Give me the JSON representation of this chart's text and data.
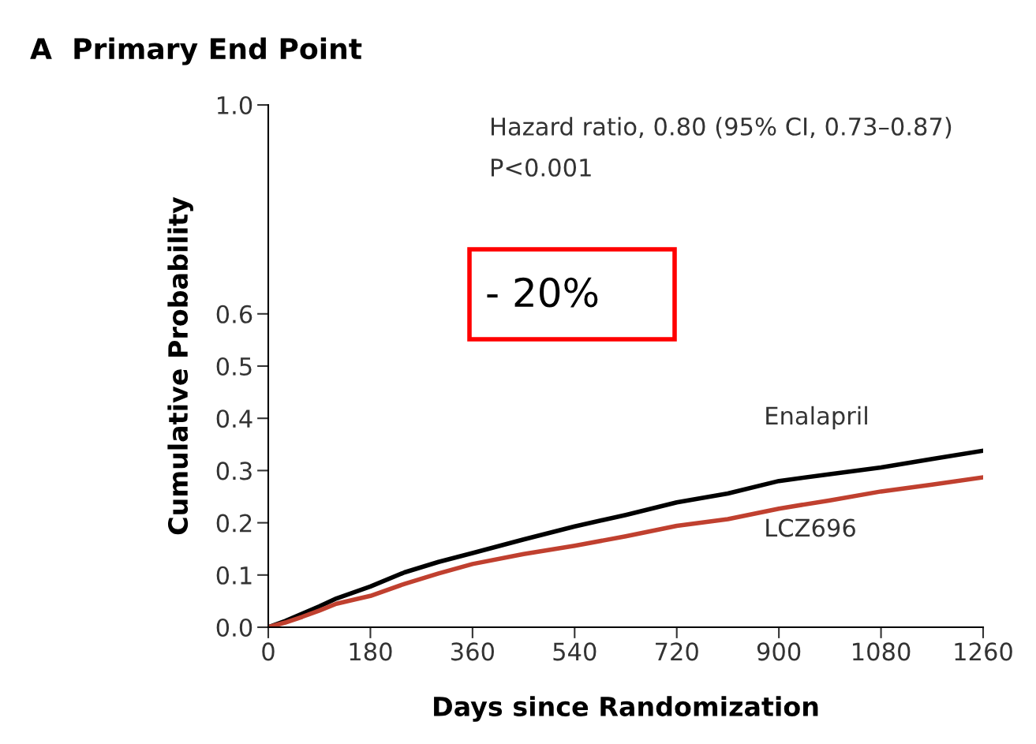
{
  "chart_data": {
    "type": "line",
    "title": "A  Primary End Point",
    "xlabel": "Days since Randomization",
    "ylabel": "Cumulative Probability",
    "xlim": [
      0,
      1260
    ],
    "xticks": [
      0,
      180,
      360,
      540,
      720,
      900,
      1080,
      1260
    ],
    "ylim": [
      0,
      1.0
    ],
    "yticks": [
      {
        "value": 0,
        "label": "0.0"
      },
      {
        "value": 0.1,
        "label": "0.1"
      },
      {
        "value": 0.2,
        "label": "0.2"
      },
      {
        "value": 0.3,
        "label": "0.3"
      },
      {
        "value": 0.4,
        "label": "0.4"
      },
      {
        "value": 0.5,
        "label": "0.5"
      },
      {
        "value": 0.6,
        "label": "0.6"
      },
      {
        "value": 1.0,
        "label": "1.0"
      }
    ],
    "grid": false,
    "legend": false,
    "marker": "none",
    "line_style": "solid",
    "x": [
      0,
      30,
      60,
      90,
      120,
      180,
      240,
      300,
      360,
      450,
      540,
      630,
      720,
      810,
      900,
      990,
      1080,
      1170,
      1260
    ],
    "series": [
      {
        "name": "Enalapril",
        "color": "#000000",
        "values": [
          0,
          0.012,
          0.026,
          0.04,
          0.055,
          0.078,
          0.105,
          0.125,
          0.142,
          0.168,
          0.193,
          0.215,
          0.239,
          0.256,
          0.28,
          0.293,
          0.306,
          0.322,
          0.338
        ]
      },
      {
        "name": "LCZ696",
        "color": "#c0402f",
        "values": [
          0,
          0.009,
          0.02,
          0.032,
          0.045,
          0.06,
          0.083,
          0.103,
          0.121,
          0.14,
          0.156,
          0.174,
          0.194,
          0.207,
          0.227,
          0.243,
          0.26,
          0.273,
          0.287
        ]
      }
    ],
    "annotations": [
      "Hazard ratio, 0.80 (95% CI, 0.73–0.87)",
      "P<0.001",
      "- 20%"
    ]
  }
}
